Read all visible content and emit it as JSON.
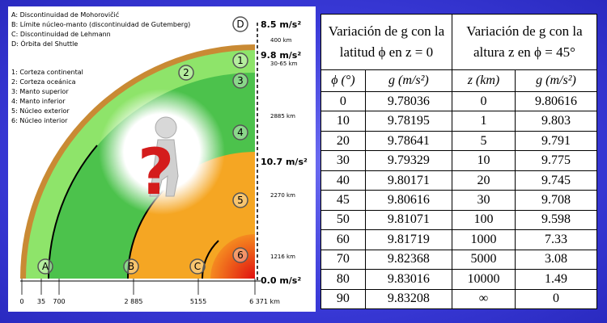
{
  "legend": {
    "letters": [
      "A: Discontinuidad de  Mohorovičić",
      "B: Límite núcleo-manto (discontinuidad de Gutemberg)",
      "C: Discontinuidad de Lehmann",
      "D: Órbita del Shuttle"
    ],
    "numbers": [
      "1: Corteza continental",
      "2: Corteza oceánica",
      "3: Manto superior",
      "4: Manto inferior",
      "5: Núcleo exterior",
      "6: Núcleo interior"
    ]
  },
  "diagram": {
    "markers": [
      "D",
      "1",
      "2",
      "3",
      "4",
      "5",
      "6",
      "A",
      "B",
      "C"
    ],
    "gravity_labels": [
      "8.5 m/s²",
      "9.8 m/s²",
      "10.7 m/s²",
      "0.0 m/s²"
    ],
    "depth_labels": [
      "400 km",
      "30-65 km",
      "2885 km",
      "2270 km",
      "1216 km"
    ],
    "axis_labels": [
      "0",
      "35",
      "700",
      "2 885",
      "5155",
      "6 371 km"
    ]
  },
  "table": {
    "header": [
      "Variación de g con la latitud ϕ en z = 0",
      "Variación de g con la altura z en ϕ = 45°"
    ],
    "subheader": [
      "ϕ (°)",
      "g (m/s²)",
      "z (km)",
      "g (m/s²)"
    ],
    "rows": [
      [
        "0",
        "9.78036",
        "0",
        "9.80616"
      ],
      [
        "10",
        "9.78195",
        "1",
        "9.803"
      ],
      [
        "20",
        "9.78641",
        "5",
        "9.791"
      ],
      [
        "30",
        "9.79329",
        "10",
        "9.775"
      ],
      [
        "40",
        "9.80171",
        "20",
        "9.745"
      ],
      [
        "45",
        "9.80616",
        "30",
        "9.708"
      ],
      [
        "50",
        "9.81071",
        "100",
        "9.598"
      ],
      [
        "60",
        "9.81719",
        "1000",
        "7.33"
      ],
      [
        "70",
        "9.82368",
        "5000",
        "3.08"
      ],
      [
        "80",
        "9.83016",
        "10000",
        "1.49"
      ],
      [
        "90",
        "9.83208",
        "∞",
        "0"
      ]
    ]
  }
}
